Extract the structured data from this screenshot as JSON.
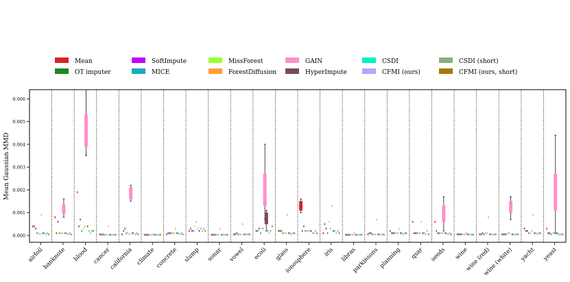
{
  "chart_data": {
    "type": "box",
    "title": "",
    "xlabel": "",
    "ylabel": "Mean Gaussian MMD",
    "ylim": [
      -0.0003,
      0.0064
    ],
    "yticks": [
      0.0,
      0.001,
      0.002,
      0.003,
      0.004,
      0.005,
      0.006
    ],
    "ytick_labels": [
      "0.000",
      "0.001",
      "0.002",
      "0.003",
      "0.004",
      "0.005",
      "0.006"
    ],
    "grid": false,
    "legend_position": "top",
    "categories": [
      "airfoil",
      "banknote",
      "blood",
      "cancer",
      "california",
      "climate",
      "concrete",
      "slump",
      "sonar",
      "vowel",
      "ecoli",
      "glass",
      "ionosphere",
      "iris",
      "libras",
      "parkinsons",
      "planning",
      "qsar",
      "seeds",
      "wine",
      "wine (red)",
      "wine (white)",
      "yacht",
      "yeast"
    ],
    "series": [
      {
        "name": "Mean",
        "color": "#d62728",
        "values": [
          0.0004,
          0.0008,
          0.0019,
          5e-05,
          5e-05,
          3e-05,
          5e-05,
          0.0002,
          3e-05,
          5e-05,
          0.0002,
          0.0002,
          0.0013,
          0.0001,
          3e-05,
          5e-05,
          0.0002,
          0.0006,
          0.0006,
          5e-05,
          5e-05,
          5e-05,
          0.0003,
          0.0003
        ]
      },
      {
        "name": "OT imputer",
        "color": "#1a8a1a",
        "values": [
          0.0004,
          0.0001,
          0.0004,
          3e-05,
          0.0002,
          3e-05,
          0.0001,
          0.0003,
          3e-05,
          5e-05,
          0.0002,
          0.0002,
          0.0002,
          0.0005,
          3e-05,
          0.0001,
          0.0001,
          0.0001,
          0.0002,
          5e-05,
          5e-05,
          5e-05,
          0.0002,
          0.0001
        ]
      },
      {
        "name": "SoftImpute",
        "color": "#bf00ff",
        "values": [
          0.0003,
          0.0006,
          0.0007,
          5e-05,
          0.0003,
          3e-05,
          0.0001,
          0.0002,
          3e-05,
          0.0001,
          0.0003,
          0.0002,
          0.0004,
          0.0003,
          3e-05,
          0.0001,
          0.0001,
          0.0001,
          0.0001,
          5e-05,
          0.0001,
          5e-05,
          0.0002,
          0.0001
        ]
      },
      {
        "name": "MICE",
        "color": "#17a9c2",
        "values": [
          0.0001,
          0.0001,
          0.0002,
          3e-05,
          0.0001,
          3e-05,
          0.0001,
          0.0002,
          3e-05,
          5e-05,
          0.0001,
          0.0001,
          0.0002,
          0.0001,
          3e-05,
          5e-05,
          0.0001,
          0.0001,
          0.0001,
          5e-05,
          5e-05,
          5e-05,
          0.0001,
          5e-05
        ]
      },
      {
        "name": "MissForest",
        "color": "#99ff33",
        "values": [
          0.0001,
          0.0001,
          0.0003,
          3e-05,
          0.0001,
          3e-05,
          0.0001,
          0.0004,
          3e-05,
          5e-05,
          0.0003,
          0.0001,
          0.0002,
          0.0006,
          3e-05,
          5e-05,
          0.0001,
          0.0001,
          0.0001,
          5e-05,
          0.0001,
          0.0001,
          0.0001,
          0.0001
        ]
      },
      {
        "name": "ForestDiffusion",
        "color": "#ffa033",
        "values": [
          5e-05,
          0.0001,
          0.0004,
          3e-05,
          5e-05,
          3e-05,
          0.0001,
          0.0006,
          3e-05,
          5e-05,
          0.0003,
          0.0001,
          0.0002,
          0.0003,
          3e-05,
          5e-05,
          0.0001,
          0.0001,
          0.0001,
          5e-05,
          0.0001,
          0.0001,
          0.0002,
          0.0001
        ]
      },
      {
        "name": "GAIN",
        "color": "#ff8fcc",
        "values": [
          0.0009,
          0.0012,
          0.0043,
          0.0004,
          0.0018,
          5e-05,
          0.0003,
          0.0003,
          0.0003,
          0.0005,
          0.0018,
          0.0009,
          0.0002,
          0.0013,
          0.0001,
          0.0007,
          0.0003,
          0.0006,
          0.0009,
          0.0001,
          0.0008,
          0.0012,
          0.0009,
          0.0019
        ]
      },
      {
        "name": "HyperImpute",
        "color": "#7a4a5a",
        "values": [
          0.0001,
          0.0001,
          0.0004,
          3e-05,
          0.0001,
          3e-05,
          0.0001,
          0.0002,
          3e-05,
          5e-05,
          0.0008,
          0.0001,
          0.0002,
          0.0002,
          3e-05,
          5e-05,
          0.0001,
          0.0001,
          0.0001,
          5e-05,
          5e-05,
          5e-05,
          0.0001,
          0.0001
        ]
      },
      {
        "name": "CSDI",
        "color": "#00f0c8",
        "values": [
          0.0001,
          0.0001,
          0.0002,
          3e-05,
          0.0001,
          3e-05,
          0.0001,
          0.0003,
          3e-05,
          5e-05,
          0.0002,
          0.0001,
          0.0001,
          0.0002,
          3e-05,
          5e-05,
          0.0001,
          0.0001,
          0.0001,
          5e-05,
          5e-05,
          5e-05,
          0.0001,
          5e-05
        ]
      },
      {
        "name": "CFMI (ours)",
        "color": "#aaa8ff",
        "values": [
          5e-05,
          5e-05,
          0.0001,
          3e-05,
          5e-05,
          3e-05,
          5e-05,
          0.0002,
          3e-05,
          5e-05,
          0.0001,
          5e-05,
          0.0001,
          0.0001,
          3e-05,
          3e-05,
          5e-05,
          5e-05,
          5e-05,
          3e-05,
          3e-05,
          3e-05,
          5e-05,
          3e-05
        ]
      },
      {
        "name": "CSDI (short)",
        "color": "#8fae7f",
        "values": [
          0.0001,
          0.0001,
          0.0002,
          3e-05,
          0.0001,
          3e-05,
          0.0001,
          0.0003,
          3e-05,
          5e-05,
          0.0002,
          0.0001,
          0.0002,
          0.0002,
          3e-05,
          5e-05,
          0.0001,
          0.0002,
          0.0001,
          5e-05,
          5e-05,
          5e-05,
          0.0001,
          5e-05
        ]
      },
      {
        "name": "CFMI (ours, short)",
        "color": "#a67800",
        "values": [
          5e-05,
          5e-05,
          0.0002,
          3e-05,
          5e-05,
          3e-05,
          5e-05,
          0.0002,
          3e-05,
          5e-05,
          0.0004,
          0.0001,
          0.0001,
          0.0001,
          3e-05,
          3e-05,
          0.0001,
          5e-05,
          5e-05,
          3e-05,
          5e-05,
          5e-05,
          0.0001,
          5e-05
        ]
      }
    ],
    "boxes": [
      {
        "category": "banknote",
        "series": "GAIN",
        "q1": 0.00095,
        "q3": 0.00135,
        "whisker_low": 0.0008,
        "whisker_high": 0.0016
      },
      {
        "category": "blood",
        "series": "GAIN",
        "q1": 0.0039,
        "q3": 0.0053,
        "whisker_low": 0.0035,
        "whisker_high": 0.0064
      },
      {
        "category": "california",
        "series": "GAIN",
        "q1": 0.0016,
        "q3": 0.0021,
        "whisker_low": 0.0015,
        "whisker_high": 0.0022
      },
      {
        "category": "ecoli",
        "series": "GAIN",
        "q1": 0.0013,
        "q3": 0.0027,
        "whisker_low": 0.0007,
        "whisker_high": 0.004
      },
      {
        "category": "ecoli",
        "series": "HyperImpute",
        "q1": 0.0005,
        "q3": 0.001,
        "whisker_low": 0.0002,
        "whisker_high": 0.0011
      },
      {
        "category": "ionosphere",
        "series": "Mean",
        "q1": 0.0011,
        "q3": 0.0015,
        "whisker_low": 0.001,
        "whisker_high": 0.0016
      },
      {
        "category": "seeds",
        "series": "GAIN",
        "q1": 0.0006,
        "q3": 0.0013,
        "whisker_low": 0.0002,
        "whisker_high": 0.0017
      },
      {
        "category": "wine (white)",
        "series": "GAIN",
        "q1": 0.001,
        "q3": 0.0015,
        "whisker_low": 0.0007,
        "whisker_high": 0.0017
      },
      {
        "category": "yeast",
        "series": "GAIN",
        "q1": 0.0011,
        "q3": 0.0027,
        "whisker_low": 0.0001,
        "whisker_high": 0.0044
      }
    ]
  }
}
